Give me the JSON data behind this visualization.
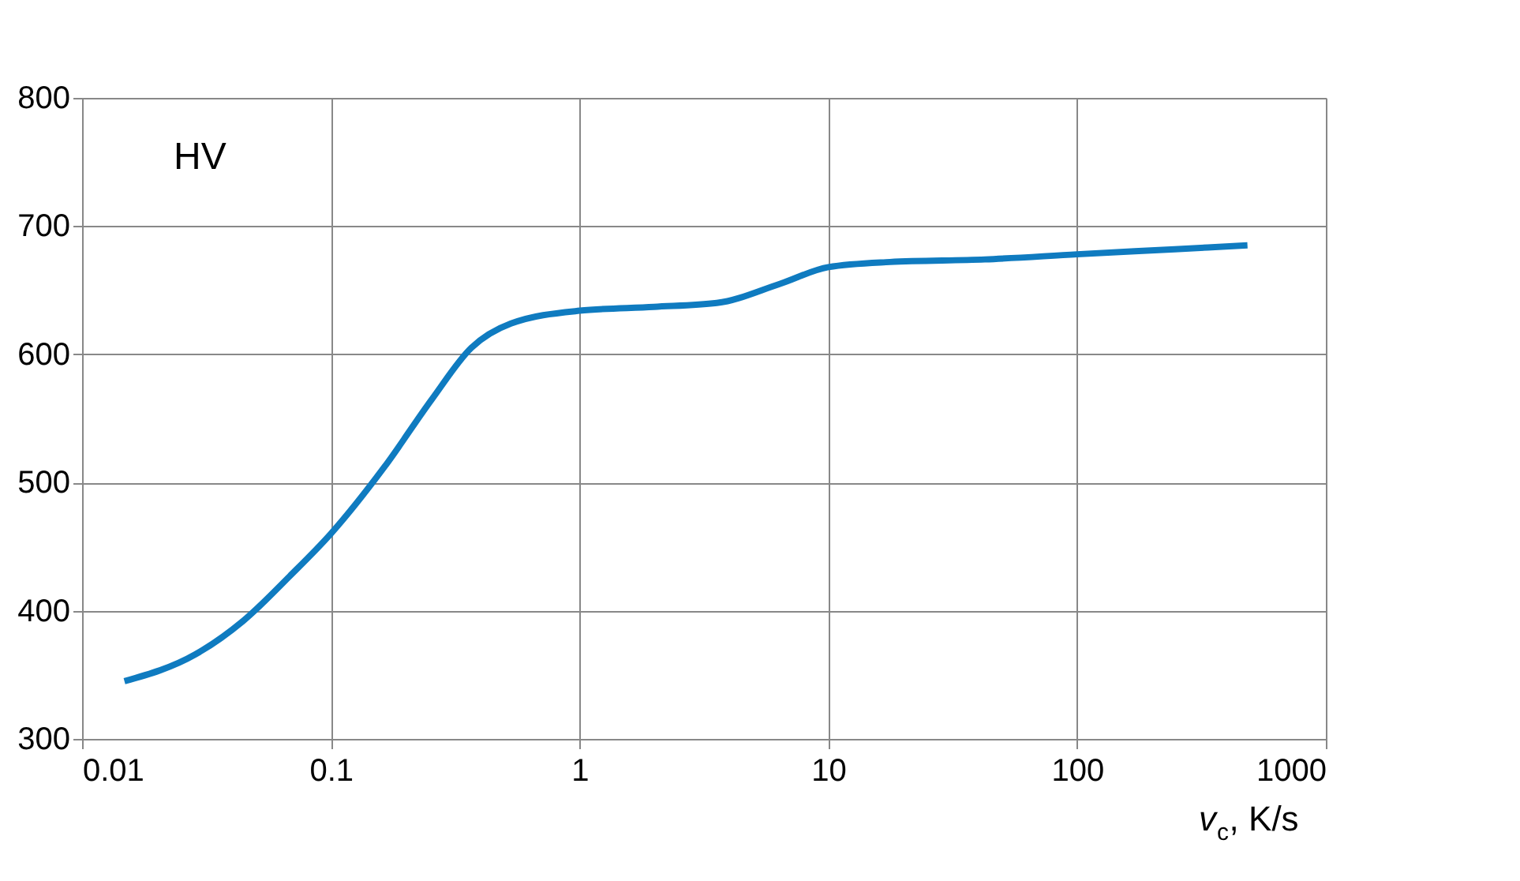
{
  "chart_data": {
    "type": "line",
    "xlabel": "v$_{c}$, K/s",
    "annotations": [
      "HV"
    ],
    "x": [
      0.0148,
      0.0286,
      0.0444,
      0.0684,
      0.1,
      0.164,
      0.255,
      0.367,
      0.53,
      1,
      1.99,
      3.56,
      6.4,
      10,
      17.7,
      42.6,
      100,
      247,
      484
    ],
    "series": [
      {
        "color": "#0f7bc0",
        "values": [
          345,
          366,
          392,
          427,
          460,
          512,
          565,
          605,
          624,
          634,
          637,
          640,
          655,
          668,
          672,
          674,
          678,
          682,
          685
        ]
      }
    ],
    "log": "x",
    "xlim": [
      0.01,
      1000
    ],
    "xticks": [
      0.01,
      0.1,
      1,
      10,
      100,
      1000
    ],
    "ylim": [
      300,
      800
    ],
    "yticks": [
      300,
      400,
      500,
      600,
      700,
      800
    ],
    "grid": true,
    "marker": "none",
    "line_style": "solid"
  }
}
